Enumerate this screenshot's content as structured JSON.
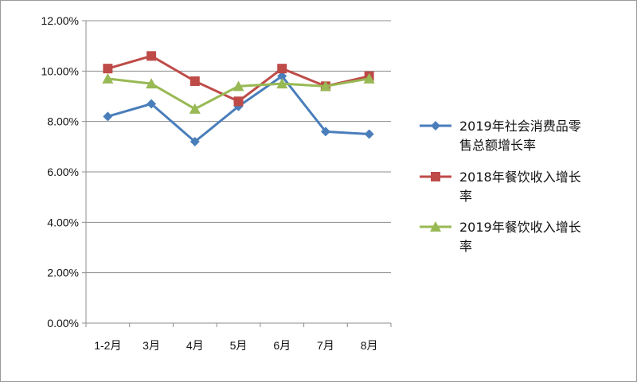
{
  "chart_data": {
    "type": "line",
    "categories": [
      "1-2月",
      "3月",
      "4月",
      "5月",
      "6月",
      "7月",
      "8月"
    ],
    "ylim": [
      0,
      12
    ],
    "yticks": [
      "0.00%",
      "2.00%",
      "4.00%",
      "6.00%",
      "8.00%",
      "10.00%",
      "12.00%"
    ],
    "grid": true,
    "legend_position": "right",
    "series": [
      {
        "name": "2019年社会消费品零售总额增长率",
        "legend_lines": [
          "2019年社会消费品零",
          "售总额增长率"
        ],
        "values": [
          8.2,
          8.7,
          7.2,
          8.6,
          9.8,
          7.6,
          7.5
        ],
        "color": "#4a7ebb",
        "marker": "diamond"
      },
      {
        "name": "2018年餐饮收入增长率",
        "legend_lines": [
          "2018年餐饮收入增长",
          "率"
        ],
        "values": [
          10.1,
          10.6,
          9.6,
          8.8,
          10.1,
          9.4,
          9.8
        ],
        "color": "#be4b48",
        "marker": "square"
      },
      {
        "name": "2019年餐饮收入增长率",
        "legend_lines": [
          "2019年餐饮收入增长",
          "率"
        ],
        "values": [
          9.7,
          9.5,
          8.5,
          9.4,
          9.5,
          9.4,
          9.7
        ],
        "color": "#98b954",
        "marker": "triangle"
      }
    ]
  }
}
